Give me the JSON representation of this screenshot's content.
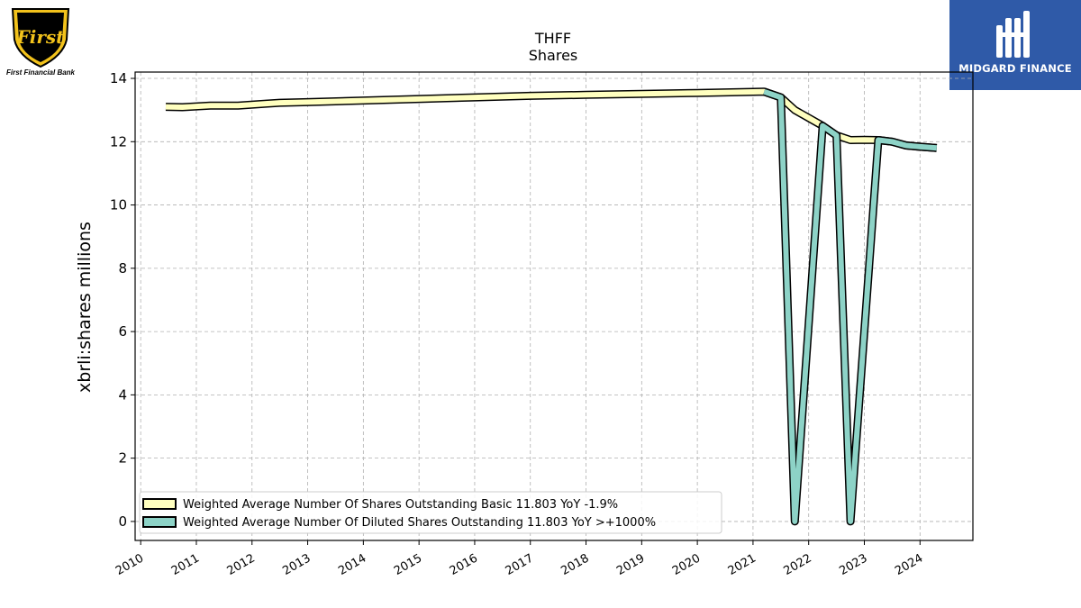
{
  "logos": {
    "left_text": "First Financial Bank",
    "left_script": "First",
    "right_text": "MIDGARD FINANCE"
  },
  "chart_data": {
    "type": "line",
    "title": "THFF",
    "subtitle": "Shares",
    "ylabel": "xbrli:shares millions",
    "xlabel": "",
    "ylim": [
      -0.6,
      14.2
    ],
    "xlim": [
      2009.9,
      2024.95
    ],
    "yticks": [
      0,
      2,
      4,
      6,
      8,
      10,
      12,
      14
    ],
    "xticks": [
      2010,
      2011,
      2012,
      2013,
      2014,
      2015,
      2016,
      2017,
      2018,
      2019,
      2020,
      2021,
      2022,
      2023,
      2024
    ],
    "grid": true,
    "legend_position": "lower-left",
    "series": [
      {
        "name": "Weighted Average Number Of Shares Outstanding Basic  11.803 YoY -1.9%",
        "color": "#ffffbf",
        "points": [
          [
            2010.45,
            13.1
          ],
          [
            2010.75,
            13.09
          ],
          [
            2011.25,
            13.14
          ],
          [
            2011.75,
            13.14
          ],
          [
            2012.25,
            13.2
          ],
          [
            2012.5,
            13.23
          ],
          [
            2013.0,
            13.25
          ],
          [
            2014.0,
            13.3
          ],
          [
            2015.0,
            13.35
          ],
          [
            2016.0,
            13.4
          ],
          [
            2017.0,
            13.45
          ],
          [
            2018.0,
            13.48
          ],
          [
            2019.0,
            13.51
          ],
          [
            2020.0,
            13.54
          ],
          [
            2021.2,
            13.58
          ],
          [
            2021.5,
            13.4
          ],
          [
            2021.75,
            13.0
          ],
          [
            2022.0,
            12.75
          ],
          [
            2022.25,
            12.5
          ],
          [
            2022.5,
            12.2
          ],
          [
            2022.75,
            12.05
          ],
          [
            2023.0,
            12.06
          ],
          [
            2023.25,
            12.05
          ],
          [
            2023.5,
            12.0
          ],
          [
            2023.75,
            11.88
          ],
          [
            2024.0,
            11.84
          ],
          [
            2024.3,
            11.8
          ]
        ]
      },
      {
        "name": "Weighted Average Number Of Diluted Shares Outstanding  11.803 YoY >+1000%",
        "color": "#8dd3c7",
        "points": [
          [
            2021.2,
            13.58
          ],
          [
            2021.5,
            13.4
          ],
          [
            2021.75,
            0.0
          ],
          [
            2022.25,
            12.5
          ],
          [
            2022.5,
            12.2
          ],
          [
            2022.75,
            0.0
          ],
          [
            2023.25,
            12.05
          ],
          [
            2023.5,
            12.0
          ],
          [
            2023.75,
            11.88
          ],
          [
            2024.0,
            11.84
          ],
          [
            2024.3,
            11.8
          ]
        ]
      }
    ]
  }
}
